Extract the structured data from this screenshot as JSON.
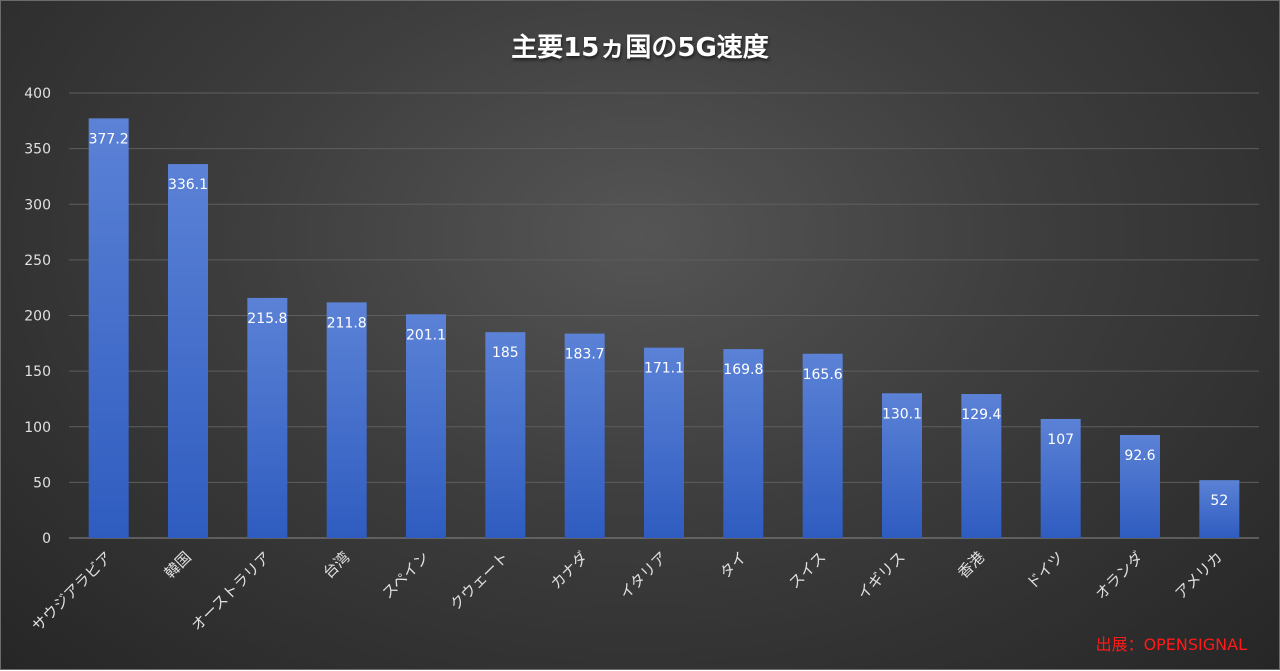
{
  "chart_data": {
    "type": "bar",
    "title": "主要15ヵ国の5G速度",
    "categories": [
      "サウジアラビア",
      "韓国",
      "オーストラリア",
      "台湾",
      "スペイン",
      "クウェート",
      "カナダ",
      "イタリア",
      "タイ",
      "スイス",
      "イギリス",
      "香港",
      "ドイツ",
      "オランダ",
      "アメリカ"
    ],
    "values": [
      377.2,
      336.1,
      215.8,
      211.8,
      201.1,
      185,
      183.7,
      171.1,
      169.8,
      165.6,
      130.1,
      129.4,
      107,
      92.6,
      52
    ],
    "y_ticks": [
      "0",
      "50",
      "100",
      "150",
      "200",
      "250",
      "300",
      "350",
      "400"
    ],
    "ylim": [
      0,
      400
    ],
    "grid": true,
    "legend": "none",
    "bar_color_top": "#5b82d6",
    "bar_color_bottom": "#2f5cc0"
  },
  "source_note": "出展：OPENSIGNAL"
}
